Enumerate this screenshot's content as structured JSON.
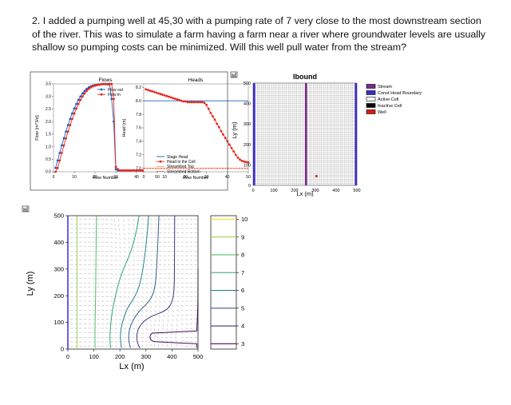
{
  "question": "2. I added a pumping well at 45,30 with a pumping rate of 7 very close to the most downstream section of the river. This was to simulate a farm having a farm near a river where groundwater levels are usually shallow so pumping costs can be minimized. Will this well pull water from the stream?",
  "figure_icons": {
    "panel": "figure-toolbar-icon"
  },
  "chart_data": [
    {
      "type": "line",
      "title": "Flows",
      "xlabel": "Row Number",
      "ylabel": "Flow (m^3/d)",
      "xlim": [
        0,
        50
      ],
      "ylim": [
        0,
        3.5
      ],
      "xticks": [
        "0",
        "10",
        "20",
        "30",
        "40",
        "50"
      ],
      "yticks": [
        "0.0",
        "0.5",
        "1.0",
        "1.5",
        "2.0",
        "2.5",
        "3.0",
        "3.5"
      ],
      "legend": "top-right",
      "series": [
        {
          "name": "Flow out",
          "color": "#1f5fbf",
          "x": [
            1,
            2,
            3,
            4,
            5,
            6,
            7,
            8,
            9,
            10,
            11,
            12,
            13,
            14,
            15,
            16,
            17,
            18,
            19,
            20,
            21,
            22,
            23,
            24,
            25,
            26,
            27,
            28,
            29,
            30,
            31,
            32,
            33,
            34,
            35,
            36,
            37,
            38,
            39,
            40,
            41,
            42,
            43,
            44,
            45,
            46,
            47,
            48,
            49,
            50
          ],
          "y": [
            0.15,
            0.45,
            0.75,
            1.05,
            1.33,
            1.6,
            1.86,
            2.1,
            2.32,
            2.52,
            2.7,
            2.86,
            3.0,
            3.12,
            3.22,
            3.3,
            3.36,
            3.4,
            3.43,
            3.45,
            3.47,
            3.48,
            3.49,
            3.5,
            3.49,
            3.48,
            3.5,
            2.9,
            2.0,
            0.1,
            0.05,
            0.05,
            0.05,
            0.05,
            0.05,
            0.05,
            0.05,
            0.05,
            0.05,
            0.05,
            0.05,
            0.05,
            0.05,
            0.05,
            0.05,
            0.05,
            0.05,
            0.05,
            0.05,
            0.05
          ]
        },
        {
          "name": "Flow in",
          "color": "#e8261b",
          "x": [
            1,
            2,
            3,
            4,
            5,
            6,
            7,
            8,
            9,
            10,
            11,
            12,
            13,
            14,
            15,
            16,
            17,
            18,
            19,
            20,
            21,
            22,
            23,
            24,
            25,
            26,
            27,
            28,
            29,
            30,
            31,
            32,
            33,
            34,
            35,
            36,
            37,
            38,
            39,
            40,
            41,
            42,
            43,
            44,
            45,
            46,
            47,
            48,
            49,
            50
          ],
          "y": [
            0,
            0.15,
            0.45,
            0.75,
            1.05,
            1.33,
            1.6,
            1.86,
            2.1,
            2.32,
            2.52,
            2.7,
            2.86,
            3.0,
            3.12,
            3.22,
            3.3,
            3.36,
            3.4,
            3.43,
            3.45,
            3.47,
            3.48,
            3.49,
            3.5,
            3.49,
            3.48,
            3.5,
            2.9,
            0.2,
            0.1,
            0.05,
            0.05,
            0.05,
            0.05,
            0.05,
            0.05,
            0.05,
            0.05,
            0.05,
            0.05,
            0.05,
            0.05,
            0.05,
            0.05,
            0.05,
            0.05,
            0.05,
            0.05,
            0.05
          ]
        }
      ]
    },
    {
      "type": "line",
      "title": "Heads",
      "xlabel": "Row Number",
      "ylabel": "Head (m)",
      "xlim": [
        0,
        50
      ],
      "ylim": [
        6.95,
        8.25
      ],
      "xticks": [
        "0",
        "10",
        "20",
        "30",
        "40",
        "50"
      ],
      "yticks": [
        "7.0",
        "7.2",
        "7.4",
        "7.6",
        "7.8",
        "8.0",
        "8.2"
      ],
      "legend": "lower-left",
      "series": [
        {
          "name": "Stage Head",
          "color": "#1f5fbf",
          "x": [
            0,
            50
          ],
          "y": [
            8.0,
            8.0
          ]
        },
        {
          "name": "Head in the Cell",
          "color": "#e8261b",
          "x": [
            1,
            2,
            3,
            4,
            5,
            6,
            7,
            8,
            9,
            10,
            11,
            12,
            13,
            14,
            15,
            16,
            17,
            18,
            19,
            20,
            21,
            22,
            23,
            24,
            25,
            26,
            27,
            28,
            29,
            30,
            31,
            32,
            33,
            34,
            35,
            36,
            37,
            38,
            39,
            40,
            41,
            42,
            43,
            44,
            45,
            46,
            47,
            48,
            49,
            50
          ],
          "y": [
            8.17,
            8.16,
            8.15,
            8.14,
            8.13,
            8.12,
            8.11,
            8.1,
            8.09,
            8.08,
            8.07,
            8.06,
            8.05,
            8.04,
            8.03,
            8.02,
            8.01,
            8.0,
            7.99,
            7.99,
            7.98,
            7.98,
            7.98,
            7.98,
            7.98,
            7.98,
            7.98,
            7.98,
            7.97,
            7.94,
            7.88,
            7.82,
            7.77,
            7.72,
            7.66,
            7.61,
            7.55,
            7.5,
            7.45,
            7.4,
            7.35,
            7.3,
            7.25,
            7.2,
            7.16,
            7.13,
            7.11,
            7.1,
            7.095,
            7.09
          ]
        },
        {
          "name": "Streambed Top",
          "color": "#f2a15f",
          "x": [
            0,
            50
          ],
          "y": [
            7.0,
            7.0
          ]
        },
        {
          "name": "Streambed Bottom",
          "color": "#e8261b",
          "style": "dashed",
          "x": [
            0,
            50
          ],
          "y": [
            7.0,
            7.0
          ]
        }
      ]
    },
    {
      "type": "heatmap",
      "title": "Ibound",
      "xlabel": "Lx (m)",
      "ylabel": "Ly (m)",
      "xlim": [
        0,
        500
      ],
      "ylim": [
        0,
        500
      ],
      "xticks": [
        "0",
        "100",
        "200",
        "300",
        "400",
        "500"
      ],
      "yticks": [
        "0",
        "100",
        "200",
        "300",
        "400",
        "500"
      ],
      "grid": true,
      "legend": "right",
      "categories": [
        "Stream",
        "Const Head Boundary",
        "Active Cell",
        "Inactive Cell",
        "Well"
      ],
      "colors": {
        "Stream": "#7b2a8a",
        "Const Head Boundary": "#3a2bd1",
        "Active Cell": "#ffffff",
        "Inactive Cell": "#000000",
        "Well": "#e01616"
      },
      "stream_x": 255,
      "const_head_x": [
        0,
        500
      ],
      "well": {
        "x": 305,
        "y": 45
      }
    },
    {
      "type": "heatmap",
      "subtype": "contour",
      "xlabel": "Lx (m)",
      "ylabel": "Ly (m)",
      "xlim": [
        0,
        500
      ],
      "ylim": [
        0,
        500
      ],
      "xticks": [
        "0",
        "100",
        "200",
        "300",
        "400",
        "500"
      ],
      "yticks": [
        "0",
        "100",
        "200",
        "300",
        "400",
        "500"
      ],
      "colorbar_ticks": [
        "3",
        "4",
        "5",
        "6",
        "7",
        "8",
        "9",
        "10"
      ],
      "colorbar_range": [
        2.7,
        10.2
      ],
      "levels": [
        3,
        4,
        5,
        6,
        7,
        8,
        9,
        10
      ]
    }
  ]
}
